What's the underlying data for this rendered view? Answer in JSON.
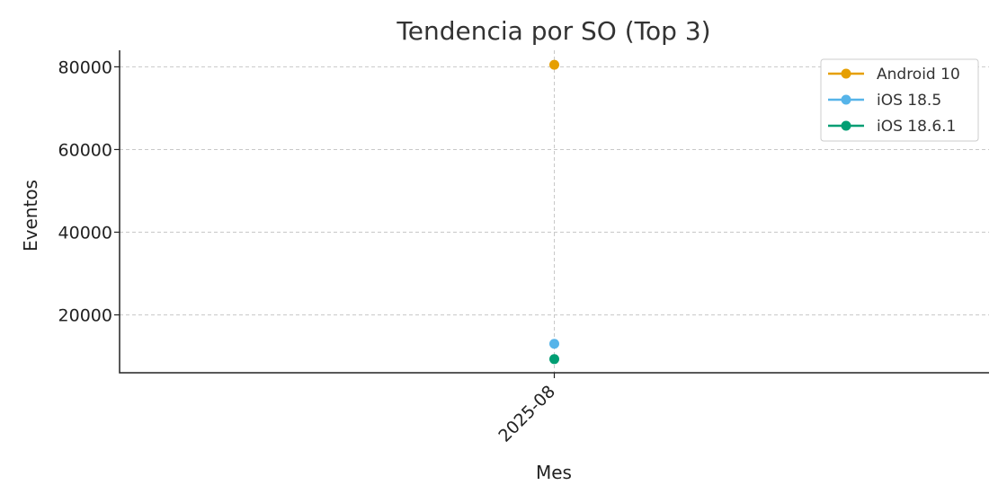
{
  "chart_data": {
    "type": "line",
    "title": "Tendencia por SO (Top 3)",
    "xlabel": "Mes",
    "ylabel": "Eventos",
    "categories": [
      "2025-08"
    ],
    "series": [
      {
        "name": "Android 10",
        "values": [
          80500
        ],
        "color": "#E69F00"
      },
      {
        "name": "iOS 18.5",
        "values": [
          13000
        ],
        "color": "#56B4E9"
      },
      {
        "name": "iOS 18.6.1",
        "values": [
          9300
        ],
        "color": "#009E73"
      }
    ],
    "yticks": [
      20000,
      40000,
      60000,
      80000
    ],
    "ylim": [
      6000,
      84000
    ],
    "grid": true,
    "legend_position": "top-right"
  }
}
